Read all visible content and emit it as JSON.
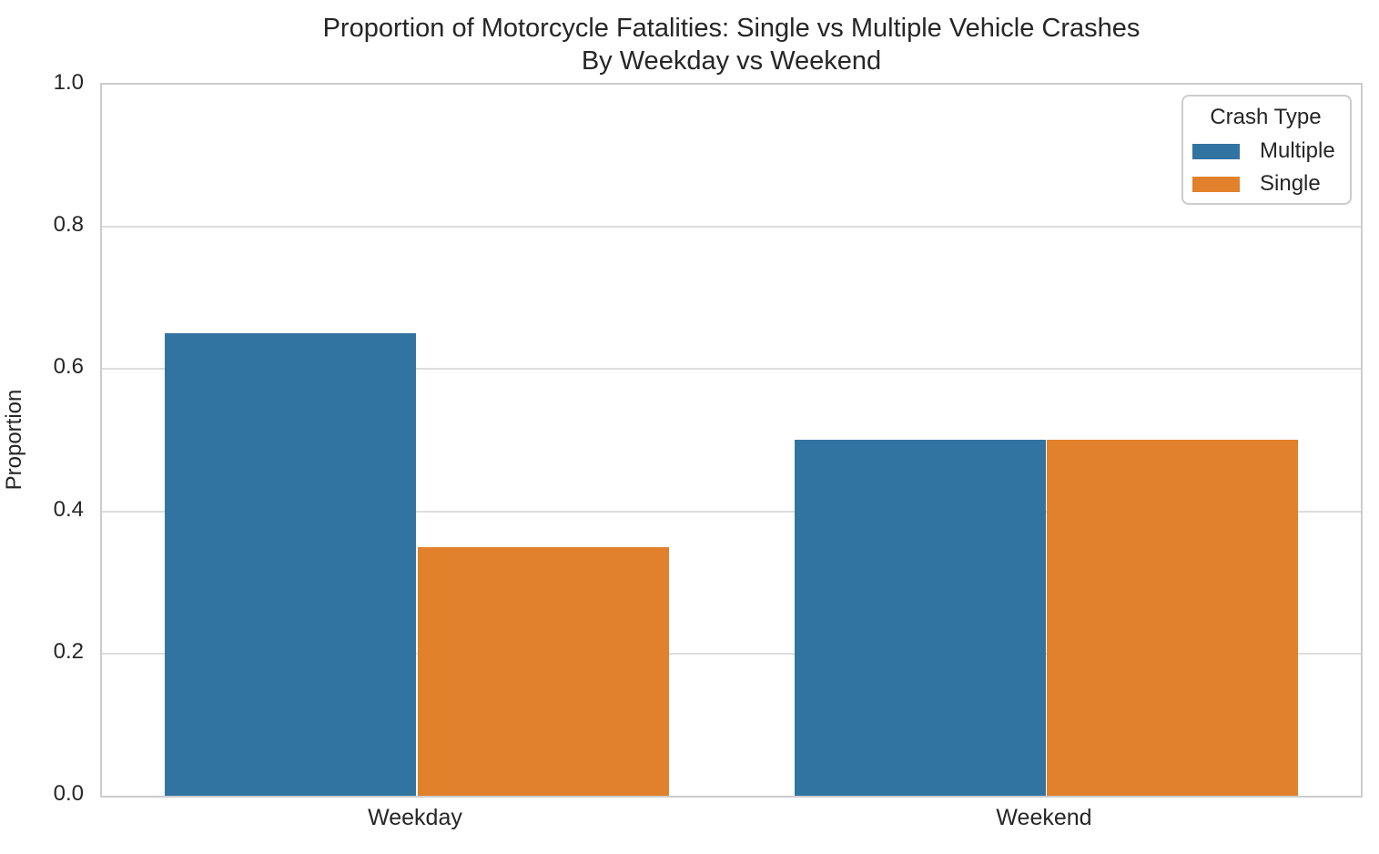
{
  "figure": {
    "title_line1": "Proportion of Motorcycle Fatalities: Single vs Multiple Vehicle Crashes",
    "title_line2": "By Weekday vs Weekend"
  },
  "chart_data": {
    "type": "bar",
    "title": "Proportion of Motorcycle Fatalities: Single vs Multiple Vehicle Crashes\nBy Weekday vs Weekend",
    "categories": [
      "Weekday",
      "Weekend"
    ],
    "series": [
      {
        "name": "Multiple",
        "values": [
          0.65,
          0.5
        ],
        "color": "#3274A1"
      },
      {
        "name": "Single",
        "values": [
          0.35,
          0.5
        ],
        "color": "#E1812C"
      }
    ],
    "xlabel": "",
    "ylabel": "Proportion",
    "ylim": [
      0,
      1
    ],
    "yticks": [
      0.0,
      0.2,
      0.4,
      0.6,
      0.8,
      1.0
    ],
    "ytick_labels": [
      "0.0",
      "0.2",
      "0.4",
      "0.6",
      "0.8",
      "1.0"
    ],
    "grid": true,
    "legend": {
      "title": "Crash Type",
      "position": "upper right",
      "entries": [
        "Multiple",
        "Single"
      ]
    }
  },
  "colors": {
    "multiple": "#3274A1",
    "single": "#E1812C",
    "text": "#262626",
    "grid": "#DDDDDD",
    "spine": "#CCCCCC",
    "background": "#FFFFFF"
  }
}
